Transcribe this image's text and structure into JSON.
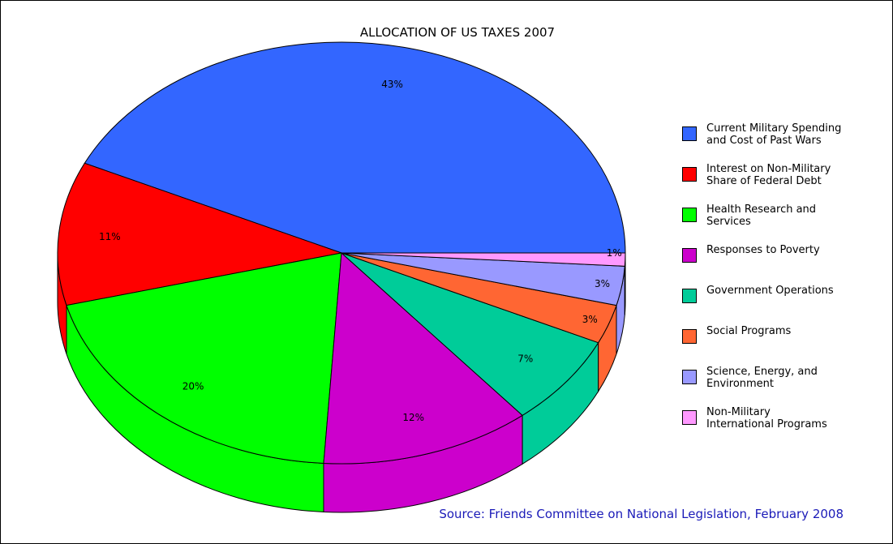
{
  "chart_data": {
    "type": "pie",
    "title": "ALLOCATION OF US TAXES 2007",
    "slices": [
      {
        "label": "Current Military Spending and Cost of Past Wars",
        "legend_lines": [
          "Current Military Spending",
          "and Cost of Past Wars"
        ],
        "value": 43,
        "value_label": "43%",
        "color": "#3366ff"
      },
      {
        "label": "Interest on Non-Military Share of Federal Debt",
        "legend_lines": [
          "Interest on Non-Military",
          "Share of Federal Debt"
        ],
        "value": 11,
        "value_label": "11%",
        "color": "#ff0000"
      },
      {
        "label": "Health Research and Services",
        "legend_lines": [
          "Health Research and",
          "Services"
        ],
        "value": 20,
        "value_label": "20%",
        "color": "#00ff00"
      },
      {
        "label": "Responses to Poverty",
        "legend_lines": [
          "Responses to Poverty"
        ],
        "value": 12,
        "value_label": "12%",
        "color": "#cc00cc"
      },
      {
        "label": "Government Operations",
        "legend_lines": [
          "Government Operations"
        ],
        "value": 7,
        "value_label": "7%",
        "color": "#00cc99"
      },
      {
        "label": "Social Programs",
        "legend_lines": [
          "Social Programs"
        ],
        "value": 3,
        "value_label": "3%",
        "color": "#ff6633"
      },
      {
        "label": "Science, Energy, and Environment",
        "legend_lines": [
          "Science, Energy, and",
          "Environment"
        ],
        "value": 3,
        "value_label": "3%",
        "color": "#9999ff"
      },
      {
        "label": "Non-Military International Programs",
        "legend_lines": [
          "Non-Military",
          "International Programs"
        ],
        "value": 1,
        "value_label": "1%",
        "color": "#ff99ff"
      }
    ],
    "legend_position": "right",
    "style": "3d-pie"
  },
  "source": "Source: Friends Committee on National Legislation, February 2008"
}
